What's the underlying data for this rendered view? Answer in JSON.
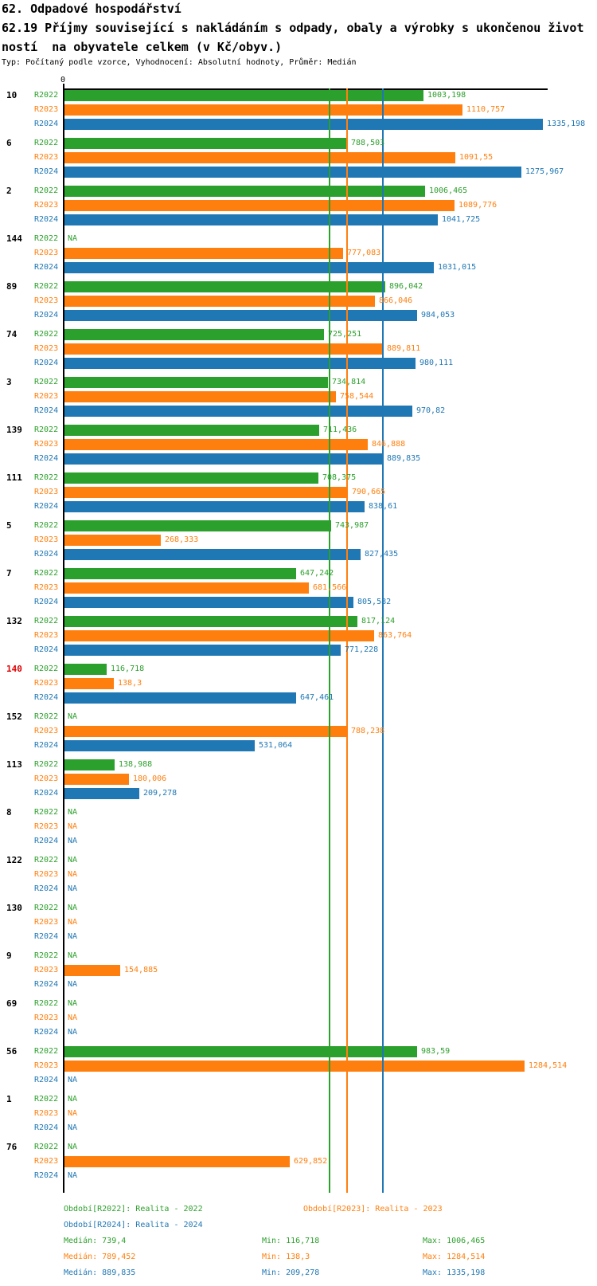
{
  "header": {
    "title": "62. Odpadové hospodářství",
    "subtitle_line1": "62.19 Příjmy související s nakládáním s odpady, obaly a výrobky s ukončenou život",
    "subtitle_line2": "ností  na obyvatele celkem (v Kč/obyv.)",
    "meta": "Typ: Počítaný podle vzorce, Vyhodnocení: Absolutní hodnoty, Průměr: Medián"
  },
  "colors": {
    "r2022": "#2ca02c",
    "r2023": "#ff7f0e",
    "r2024": "#1f77b4",
    "highlight_group": "#dd0000",
    "axis": "#000000"
  },
  "chart_data": {
    "type": "bar",
    "orientation": "horizontal",
    "title": "62.19 Příjmy související s nakládáním s odpady, obaly a výrobky s ukončenou životností na obyvatele celkem (v Kč/obyv.)",
    "unit": "Kč/obyv.",
    "x_axis": {
      "zero_label": "0",
      "min": 0,
      "approx_max": 1355,
      "gridlines": false
    },
    "series_labels": [
      "R2022",
      "R2023",
      "R2024"
    ],
    "na_text": "NA",
    "groups": [
      {
        "id": "10",
        "highlight": false,
        "values": [
          1003.198,
          1110.757,
          1335.198
        ],
        "labels": [
          "1003,198",
          "1110,757",
          "1335,198"
        ]
      },
      {
        "id": "6",
        "highlight": false,
        "values": [
          788.503,
          1091.55,
          1275.967
        ],
        "labels": [
          "788,503",
          "1091,55",
          "1275,967"
        ]
      },
      {
        "id": "2",
        "highlight": false,
        "values": [
          1006.465,
          1089.776,
          1041.725
        ],
        "labels": [
          "1006,465",
          "1089,776",
          "1041,725"
        ]
      },
      {
        "id": "144",
        "highlight": false,
        "values": [
          null,
          777.083,
          1031.015
        ],
        "labels": [
          "NA",
          "777,083",
          "1031,015"
        ]
      },
      {
        "id": "89",
        "highlight": false,
        "values": [
          896.042,
          866.046,
          984.053
        ],
        "labels": [
          "896,042",
          "866,046",
          "984,053"
        ]
      },
      {
        "id": "74",
        "highlight": false,
        "values": [
          725.251,
          889.811,
          980.111
        ],
        "labels": [
          "725,251",
          "889,811",
          "980,111"
        ]
      },
      {
        "id": "3",
        "highlight": false,
        "values": [
          734.814,
          758.544,
          970.82
        ],
        "labels": [
          "734,814",
          "758,544",
          "970,82"
        ]
      },
      {
        "id": "139",
        "highlight": false,
        "values": [
          711.436,
          846.888,
          889.835
        ],
        "labels": [
          "711,436",
          "846,888",
          "889,835"
        ]
      },
      {
        "id": "111",
        "highlight": false,
        "values": [
          708.375,
          790.665,
          838.61
        ],
        "labels": [
          "708,375",
          "790,665",
          "838,61"
        ]
      },
      {
        "id": "5",
        "highlight": false,
        "values": [
          743.987,
          268.333,
          827.435
        ],
        "labels": [
          "743,987",
          "268,333",
          "827,435"
        ]
      },
      {
        "id": "7",
        "highlight": false,
        "values": [
          647.242,
          681.566,
          805.582
        ],
        "labels": [
          "647,242",
          "681,566",
          "805,582"
        ]
      },
      {
        "id": "132",
        "highlight": false,
        "values": [
          817.124,
          863.764,
          771.228
        ],
        "labels": [
          "817,124",
          "863,764",
          "771,228"
        ]
      },
      {
        "id": "140",
        "highlight": true,
        "values": [
          116.718,
          138.3,
          647.461
        ],
        "labels": [
          "116,718",
          "138,3",
          "647,461"
        ]
      },
      {
        "id": "152",
        "highlight": false,
        "values": [
          null,
          788.238,
          531.064
        ],
        "labels": [
          "NA",
          "788,238",
          "531,064"
        ]
      },
      {
        "id": "113",
        "highlight": false,
        "values": [
          138.988,
          180.006,
          209.278
        ],
        "labels": [
          "138,988",
          "180,006",
          "209,278"
        ]
      },
      {
        "id": "8",
        "highlight": false,
        "values": [
          null,
          null,
          null
        ],
        "labels": [
          "NA",
          "NA",
          "NA"
        ]
      },
      {
        "id": "122",
        "highlight": false,
        "values": [
          null,
          null,
          null
        ],
        "labels": [
          "NA",
          "NA",
          "NA"
        ]
      },
      {
        "id": "130",
        "highlight": false,
        "values": [
          null,
          null,
          null
        ],
        "labels": [
          "NA",
          "NA",
          "NA"
        ]
      },
      {
        "id": "9",
        "highlight": false,
        "values": [
          null,
          154.885,
          null
        ],
        "labels": [
          "NA",
          "154,885",
          "NA"
        ]
      },
      {
        "id": "69",
        "highlight": false,
        "values": [
          null,
          null,
          null
        ],
        "labels": [
          "NA",
          "NA",
          "NA"
        ]
      },
      {
        "id": "56",
        "highlight": false,
        "values": [
          983.59,
          1284.514,
          null
        ],
        "labels": [
          "983,59",
          "1284,514",
          "NA"
        ]
      },
      {
        "id": "1",
        "highlight": false,
        "values": [
          null,
          null,
          null
        ],
        "labels": [
          "NA",
          "NA",
          "NA"
        ]
      },
      {
        "id": "76",
        "highlight": false,
        "values": [
          null,
          629.852,
          null
        ],
        "labels": [
          "NA",
          "629,852",
          "NA"
        ]
      }
    ],
    "median_lines": [
      739.4,
      789.452,
      889.835
    ],
    "legend_position": "bottom"
  },
  "legend": {
    "period_2022": "Období[R2022]: Realita - 2022",
    "period_2023": "Období[R2023]: Realita - 2023",
    "period_2024": "Období[R2024]: Realita - 2024",
    "stats": [
      {
        "median": "Medián: 739,4",
        "min": "Min: 116,718",
        "max": "Max: 1006,465"
      },
      {
        "median": "Medián: 789,452",
        "min": "Min: 138,3",
        "max": "Max: 1284,514"
      },
      {
        "median": "Medián: 889,835",
        "min": "Min: 209,278",
        "max": "Max: 1335,198"
      }
    ]
  }
}
